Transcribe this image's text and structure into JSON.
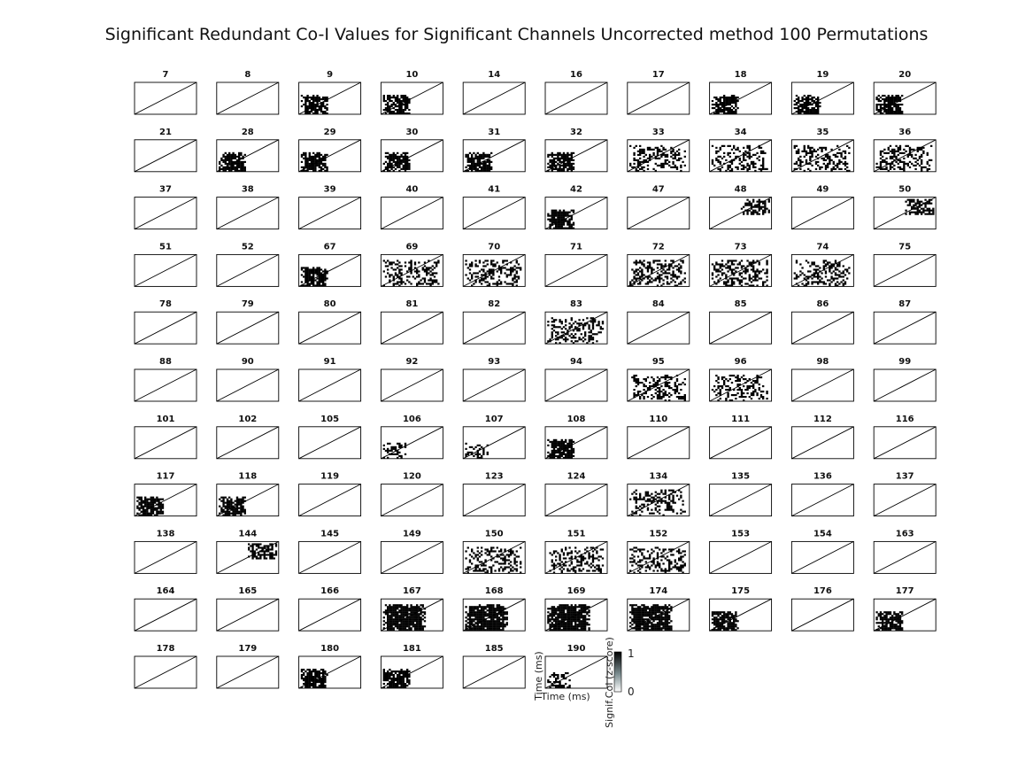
{
  "title": "Significant Redundant Co-I Values for Significant Channels Uncorrected method 100 Permutations",
  "chart_data": {
    "type": "heatmap",
    "title": "Significant Redundant Co-I Values for Significant Channels Uncorrected method 100 Permutations",
    "panels": [
      {
        "label": "7",
        "pattern": "none"
      },
      {
        "label": "8",
        "pattern": "none"
      },
      {
        "label": "9",
        "pattern": "dense-lower-left"
      },
      {
        "label": "10",
        "pattern": "dense-lower-left"
      },
      {
        "label": "14",
        "pattern": "none"
      },
      {
        "label": "16",
        "pattern": "none"
      },
      {
        "label": "17",
        "pattern": "none"
      },
      {
        "label": "18",
        "pattern": "dense-lower-left"
      },
      {
        "label": "19",
        "pattern": "dense-lower-left"
      },
      {
        "label": "20",
        "pattern": "dense-lower-left"
      },
      {
        "label": "21",
        "pattern": "none"
      },
      {
        "label": "28",
        "pattern": "dense-lower-left"
      },
      {
        "label": "29",
        "pattern": "dense-lower-left"
      },
      {
        "label": "30",
        "pattern": "dense-lower-left"
      },
      {
        "label": "31",
        "pattern": "dense-lower-left"
      },
      {
        "label": "32",
        "pattern": "dense-lower-left"
      },
      {
        "label": "33",
        "pattern": "scattered"
      },
      {
        "label": "34",
        "pattern": "scattered"
      },
      {
        "label": "35",
        "pattern": "scattered"
      },
      {
        "label": "36",
        "pattern": "scattered"
      },
      {
        "label": "37",
        "pattern": "none"
      },
      {
        "label": "38",
        "pattern": "none"
      },
      {
        "label": "39",
        "pattern": "none"
      },
      {
        "label": "40",
        "pattern": "none"
      },
      {
        "label": "41",
        "pattern": "none"
      },
      {
        "label": "42",
        "pattern": "dense-lower-left"
      },
      {
        "label": "47",
        "pattern": "none"
      },
      {
        "label": "48",
        "pattern": "upper-right"
      },
      {
        "label": "49",
        "pattern": "none"
      },
      {
        "label": "50",
        "pattern": "upper-right"
      },
      {
        "label": "51",
        "pattern": "none"
      },
      {
        "label": "52",
        "pattern": "none"
      },
      {
        "label": "67",
        "pattern": "dense-lower-left"
      },
      {
        "label": "69",
        "pattern": "scattered"
      },
      {
        "label": "70",
        "pattern": "scattered"
      },
      {
        "label": "71",
        "pattern": "none"
      },
      {
        "label": "72",
        "pattern": "scattered"
      },
      {
        "label": "73",
        "pattern": "scattered"
      },
      {
        "label": "74",
        "pattern": "scattered"
      },
      {
        "label": "75",
        "pattern": "none"
      },
      {
        "label": "78",
        "pattern": "none"
      },
      {
        "label": "79",
        "pattern": "none"
      },
      {
        "label": "80",
        "pattern": "none"
      },
      {
        "label": "81",
        "pattern": "none"
      },
      {
        "label": "82",
        "pattern": "none"
      },
      {
        "label": "83",
        "pattern": "scattered"
      },
      {
        "label": "84",
        "pattern": "none"
      },
      {
        "label": "85",
        "pattern": "none"
      },
      {
        "label": "86",
        "pattern": "none"
      },
      {
        "label": "87",
        "pattern": "none"
      },
      {
        "label": "88",
        "pattern": "none"
      },
      {
        "label": "90",
        "pattern": "none"
      },
      {
        "label": "91",
        "pattern": "none"
      },
      {
        "label": "92",
        "pattern": "none"
      },
      {
        "label": "93",
        "pattern": "none"
      },
      {
        "label": "94",
        "pattern": "none"
      },
      {
        "label": "95",
        "pattern": "scattered"
      },
      {
        "label": "96",
        "pattern": "scattered"
      },
      {
        "label": "98",
        "pattern": "none"
      },
      {
        "label": "99",
        "pattern": "none"
      },
      {
        "label": "101",
        "pattern": "none"
      },
      {
        "label": "102",
        "pattern": "none"
      },
      {
        "label": "105",
        "pattern": "none"
      },
      {
        "label": "106",
        "pattern": "sparse-lower-left"
      },
      {
        "label": "107",
        "pattern": "sparse-lower-left"
      },
      {
        "label": "108",
        "pattern": "dense-lower-left"
      },
      {
        "label": "110",
        "pattern": "none"
      },
      {
        "label": "111",
        "pattern": "none"
      },
      {
        "label": "112",
        "pattern": "none"
      },
      {
        "label": "116",
        "pattern": "none"
      },
      {
        "label": "117",
        "pattern": "dense-lower-left"
      },
      {
        "label": "118",
        "pattern": "dense-lower-left"
      },
      {
        "label": "119",
        "pattern": "none"
      },
      {
        "label": "120",
        "pattern": "none"
      },
      {
        "label": "123",
        "pattern": "none"
      },
      {
        "label": "124",
        "pattern": "none"
      },
      {
        "label": "134",
        "pattern": "scattered"
      },
      {
        "label": "135",
        "pattern": "none"
      },
      {
        "label": "136",
        "pattern": "none"
      },
      {
        "label": "137",
        "pattern": "none"
      },
      {
        "label": "138",
        "pattern": "none"
      },
      {
        "label": "144",
        "pattern": "upper-right"
      },
      {
        "label": "145",
        "pattern": "none"
      },
      {
        "label": "149",
        "pattern": "none"
      },
      {
        "label": "150",
        "pattern": "scattered"
      },
      {
        "label": "151",
        "pattern": "scattered"
      },
      {
        "label": "152",
        "pattern": "scattered"
      },
      {
        "label": "153",
        "pattern": "none"
      },
      {
        "label": "154",
        "pattern": "none"
      },
      {
        "label": "163",
        "pattern": "none"
      },
      {
        "label": "164",
        "pattern": "none"
      },
      {
        "label": "165",
        "pattern": "none"
      },
      {
        "label": "166",
        "pattern": "none"
      },
      {
        "label": "167",
        "pattern": "dense-full"
      },
      {
        "label": "168",
        "pattern": "dense-full"
      },
      {
        "label": "169",
        "pattern": "dense-full"
      },
      {
        "label": "174",
        "pattern": "dense-full"
      },
      {
        "label": "175",
        "pattern": "dense-lower-left"
      },
      {
        "label": "176",
        "pattern": "none"
      },
      {
        "label": "177",
        "pattern": "dense-lower-left"
      },
      {
        "label": "178",
        "pattern": "none"
      },
      {
        "label": "179",
        "pattern": "none"
      },
      {
        "label": "180",
        "pattern": "dense-lower-left"
      },
      {
        "label": "181",
        "pattern": "dense-lower-left"
      },
      {
        "label": "185",
        "pattern": "none"
      },
      {
        "label": "190",
        "pattern": "sparse-lower-left"
      }
    ],
    "colorbar": {
      "label": "Signif.CoI (z-score)",
      "range": [
        0,
        1
      ],
      "ticks": [
        "0",
        "1"
      ],
      "colors": [
        "#ffffff",
        "#000000"
      ]
    },
    "last_panel_axes": {
      "xlabel": "Time (ms)",
      "ylabel": "Time (ms)"
    },
    "diagonal": true,
    "grid": false
  }
}
